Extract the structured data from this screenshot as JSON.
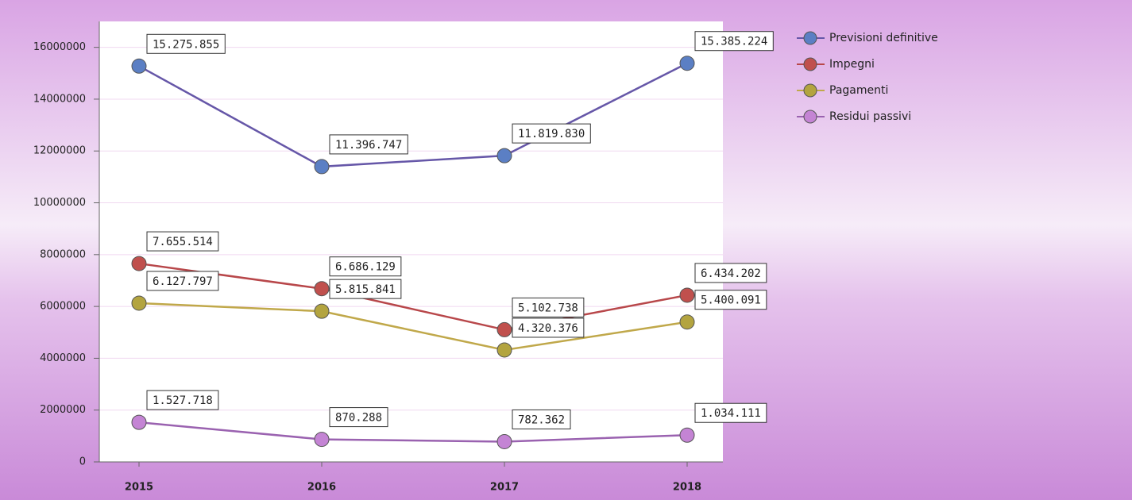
{
  "chart_data": {
    "type": "line",
    "categories": [
      "2015",
      "2016",
      "2017",
      "2018"
    ],
    "series": [
      {
        "name": "Previsioni definitive",
        "color": "#5b7fc4",
        "line_color": "#6657a8",
        "values": [
          15275855,
          11396747,
          11819830,
          15385224
        ],
        "value_labels": [
          "15.275.855",
          "11.396.747",
          "11.819.830",
          "15.385.224"
        ]
      },
      {
        "name": "Impegni",
        "color": "#c0504d",
        "line_color": "#b8474a",
        "values": [
          7655514,
          6686129,
          5102738,
          6434202
        ],
        "value_labels": [
          "7.655.514",
          "6.686.129",
          "5.102.738",
          "6.434.202"
        ]
      },
      {
        "name": "Pagamenti",
        "color": "#b3a43f",
        "line_color": "#c0a84a",
        "values": [
          6127797,
          5815841,
          4320376,
          5400091
        ],
        "value_labels": [
          "6.127.797",
          "5.815.841",
          "4.320.376",
          "5.400.091"
        ]
      },
      {
        "name": "Residui passivi",
        "color": "#c484d4",
        "line_color": "#9a62b0",
        "values": [
          1527718,
          870288,
          782362,
          1034111
        ],
        "value_labels": [
          "1.527.718",
          "870.288",
          "782.362",
          "1.034.111"
        ]
      }
    ],
    "ylim": [
      0,
      17000000
    ],
    "yticks": [
      0,
      2000000,
      4000000,
      6000000,
      8000000,
      10000000,
      12000000,
      14000000,
      16000000
    ],
    "grid": true,
    "legend": "right"
  }
}
